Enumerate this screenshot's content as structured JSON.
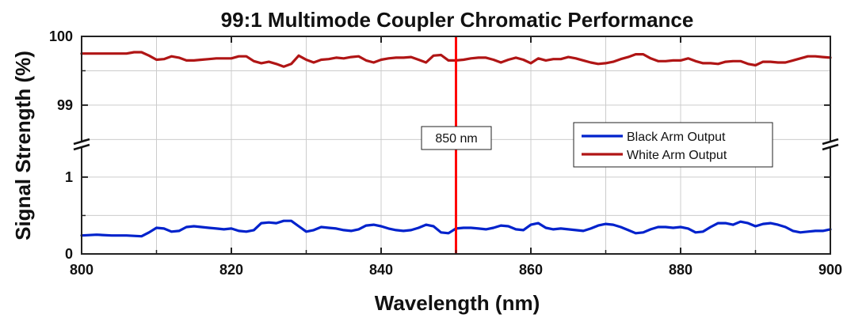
{
  "chart_data": {
    "type": "line",
    "title": "99:1 Multimode Coupler Chromatic Performance",
    "xlabel": "Wavelength (nm)",
    "ylabel": "Signal Strength (%)",
    "xlim": [
      800,
      900
    ],
    "x_ticks": [
      "800",
      "820",
      "840",
      "860",
      "880",
      "900"
    ],
    "y_axis_break": true,
    "y_segments": [
      {
        "range": [
          98.4,
          100
        ],
        "tick_labels": [
          "99",
          "100"
        ],
        "tick_values": [
          99,
          100
        ]
      },
      {
        "range": [
          0,
          1.4
        ],
        "tick_labels": [
          "0",
          "1"
        ],
        "tick_values": [
          0,
          1
        ]
      }
    ],
    "grid": true,
    "legend_position": "center-right",
    "marker": {
      "x": 850,
      "label": "850 nm",
      "color": "#ff0000"
    },
    "series": [
      {
        "name": "Black Arm Output",
        "color": "#0022cc",
        "segment": 1,
        "x": [
          800,
          802,
          804,
          806,
          808,
          809,
          810,
          811,
          812,
          813,
          814,
          815,
          816,
          817,
          818,
          819,
          820,
          821,
          822,
          823,
          824,
          825,
          826,
          827,
          828,
          829,
          830,
          831,
          832,
          833,
          834,
          835,
          836,
          837,
          838,
          839,
          840,
          841,
          842,
          843,
          844,
          845,
          846,
          847,
          848,
          849,
          850,
          851,
          852,
          853,
          854,
          855,
          856,
          857,
          858,
          859,
          860,
          861,
          862,
          863,
          864,
          865,
          866,
          867,
          868,
          869,
          870,
          871,
          872,
          873,
          874,
          875,
          876,
          877,
          878,
          879,
          880,
          881,
          882,
          883,
          884,
          885,
          886,
          887,
          888,
          889,
          890,
          891,
          892,
          893,
          894,
          895,
          896,
          897,
          898,
          899,
          900
        ],
        "values": [
          0.24,
          0.25,
          0.24,
          0.24,
          0.23,
          0.28,
          0.34,
          0.33,
          0.29,
          0.3,
          0.35,
          0.36,
          0.35,
          0.34,
          0.33,
          0.32,
          0.33,
          0.3,
          0.29,
          0.31,
          0.4,
          0.41,
          0.4,
          0.43,
          0.43,
          0.36,
          0.29,
          0.31,
          0.35,
          0.34,
          0.33,
          0.31,
          0.3,
          0.32,
          0.37,
          0.38,
          0.36,
          0.33,
          0.31,
          0.3,
          0.31,
          0.34,
          0.38,
          0.36,
          0.28,
          0.27,
          0.33,
          0.34,
          0.34,
          0.33,
          0.32,
          0.34,
          0.37,
          0.36,
          0.32,
          0.31,
          0.38,
          0.4,
          0.34,
          0.32,
          0.33,
          0.32,
          0.31,
          0.3,
          0.33,
          0.37,
          0.39,
          0.38,
          0.35,
          0.31,
          0.27,
          0.28,
          0.32,
          0.35,
          0.35,
          0.34,
          0.35,
          0.33,
          0.28,
          0.29,
          0.35,
          0.4,
          0.4,
          0.38,
          0.42,
          0.4,
          0.36,
          0.39,
          0.4,
          0.38,
          0.35,
          0.3,
          0.28,
          0.29,
          0.3,
          0.3,
          0.32
        ]
      },
      {
        "name": "White Arm Output",
        "color": "#b01515",
        "segment": 0,
        "x": [
          800,
          802,
          804,
          806,
          807,
          808,
          809,
          810,
          811,
          812,
          813,
          814,
          815,
          816,
          817,
          818,
          819,
          820,
          821,
          822,
          823,
          824,
          825,
          826,
          827,
          828,
          829,
          830,
          831,
          832,
          833,
          834,
          835,
          836,
          837,
          838,
          839,
          840,
          841,
          842,
          843,
          844,
          845,
          846,
          847,
          848,
          849,
          850,
          851,
          852,
          853,
          854,
          855,
          856,
          857,
          858,
          859,
          860,
          861,
          862,
          863,
          864,
          865,
          866,
          867,
          868,
          869,
          870,
          871,
          872,
          873,
          874,
          875,
          876,
          877,
          878,
          879,
          880,
          881,
          882,
          883,
          884,
          885,
          886,
          887,
          888,
          889,
          890,
          891,
          892,
          893,
          894,
          895,
          896,
          897,
          898,
          899,
          900
        ],
        "values": [
          99.75,
          99.75,
          99.75,
          99.75,
          99.77,
          99.77,
          99.72,
          99.66,
          99.67,
          99.71,
          99.69,
          99.65,
          99.65,
          99.66,
          99.67,
          99.68,
          99.68,
          99.68,
          99.71,
          99.71,
          99.64,
          99.61,
          99.63,
          99.6,
          99.56,
          99.6,
          99.72,
          99.66,
          99.62,
          99.66,
          99.67,
          99.69,
          99.68,
          99.7,
          99.71,
          99.65,
          99.62,
          99.66,
          99.68,
          99.69,
          99.69,
          99.7,
          99.66,
          99.62,
          99.72,
          99.73,
          99.65,
          99.65,
          99.66,
          99.68,
          99.69,
          99.69,
          99.66,
          99.62,
          99.66,
          99.69,
          99.66,
          99.61,
          99.68,
          99.65,
          99.67,
          99.67,
          99.7,
          99.68,
          99.65,
          99.62,
          99.6,
          99.61,
          99.63,
          99.67,
          99.7,
          99.74,
          99.74,
          99.68,
          99.64,
          99.64,
          99.65,
          99.65,
          99.68,
          99.64,
          99.61,
          99.61,
          99.6,
          99.63,
          99.64,
          99.64,
          99.6,
          99.58,
          99.63,
          99.63,
          99.62,
          99.62,
          99.65,
          99.68,
          99.71,
          99.71,
          99.7,
          99.69
        ]
      }
    ]
  }
}
